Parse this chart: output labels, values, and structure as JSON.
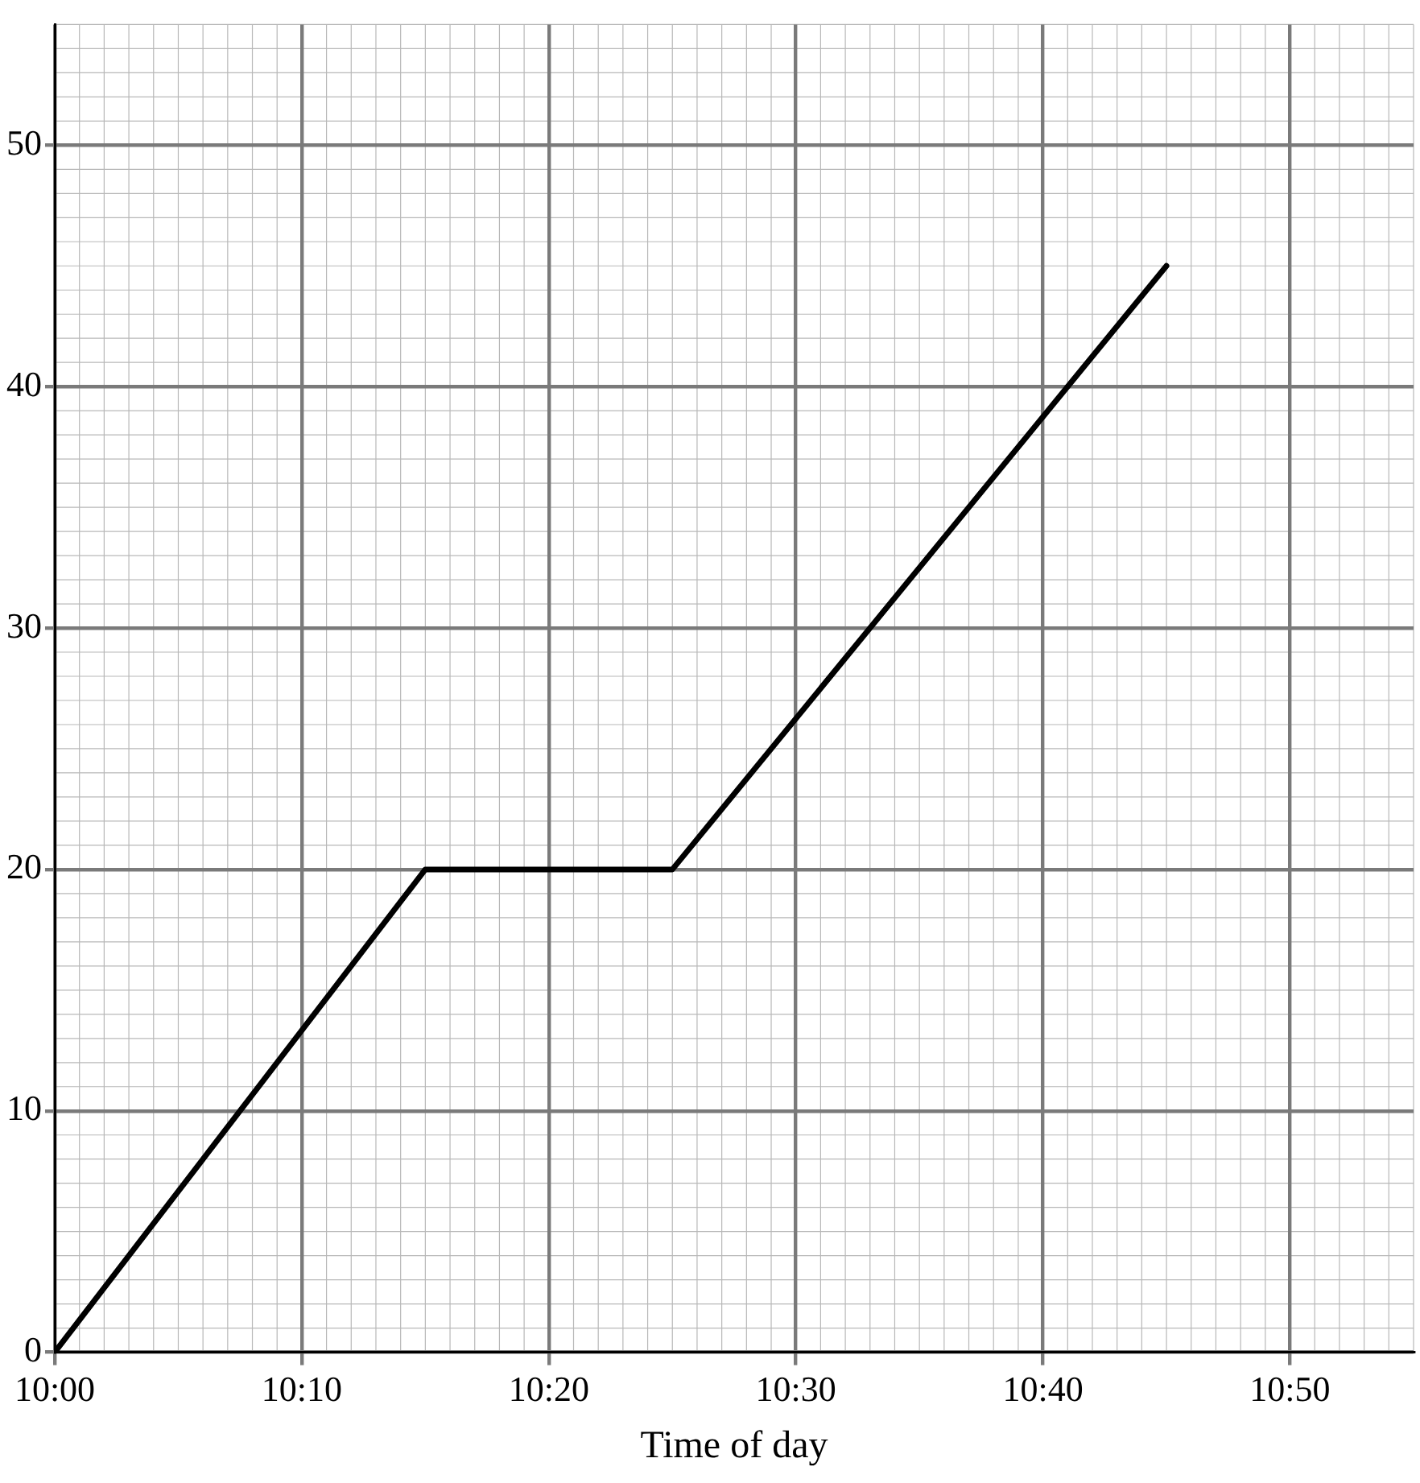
{
  "chart_data": {
    "type": "line",
    "xlabel": "Time of day",
    "series": [
      {
        "color": "#000000",
        "x": [
          10,
          10.25,
          10.41667,
          10.75
        ],
        "values": [
          0,
          20,
          20,
          45
        ]
      }
    ],
    "xlim": [
      10,
      10.9167
    ],
    "ylim": [
      0,
      55
    ],
    "xticks": [
      {
        "value": 10,
        "label": "10:00"
      },
      {
        "value": 10.16667,
        "label": "10:10"
      },
      {
        "value": 10.33333,
        "label": "10:20"
      },
      {
        "value": 10.5,
        "label": "10:30"
      },
      {
        "value": 10.66667,
        "label": "10:40"
      },
      {
        "value": 10.83333,
        "label": "10:50"
      }
    ],
    "yticks": [
      0,
      10,
      20,
      30,
      40,
      50
    ],
    "grid": true,
    "legend": false,
    "marker": "none",
    "line_style": "solid"
  }
}
